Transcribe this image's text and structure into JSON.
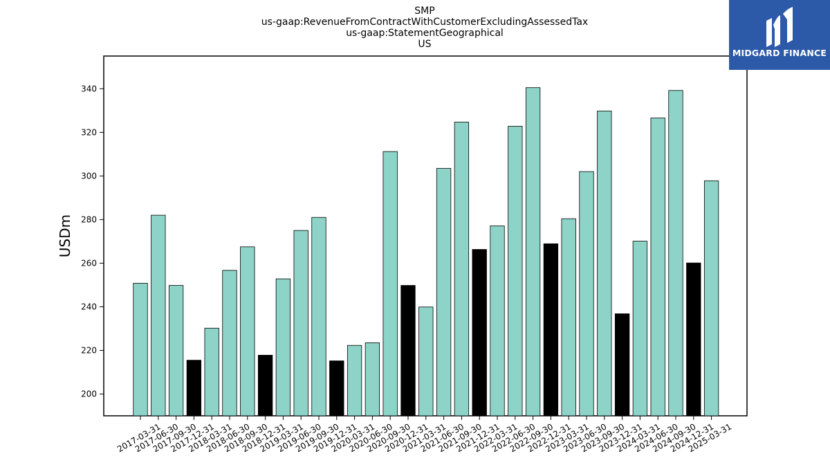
{
  "logo": {
    "text": "MIDGARD FINANCE"
  },
  "colors": {
    "regular": "#8dd3c7",
    "q4": "#000000",
    "logo_bg": "#2c5aa8"
  },
  "chart_data": {
    "type": "bar",
    "title_lines": [
      "SMP",
      "us-gaap:RevenueFromContractWithCustomerExcludingAssessedTax",
      "us-gaap:StatementGeographical",
      "US"
    ],
    "xlabel": "",
    "ylabel": "USDm",
    "ylim": [
      190,
      355
    ],
    "yticks": [
      200,
      220,
      240,
      260,
      280,
      300,
      320,
      340
    ],
    "grid": false,
    "categories": [
      "2017-03-31",
      "2017-06-30",
      "2017-09-30",
      "2017-12-31",
      "2018-03-31",
      "2018-06-30",
      "2018-09-30",
      "2018-12-31",
      "2019-03-31",
      "2019-06-30",
      "2019-09-30",
      "2019-12-31",
      "2020-03-31",
      "2020-06-30",
      "2020-09-30",
      "2020-12-31",
      "2021-03-31",
      "2021-06-30",
      "2021-09-30",
      "2021-12-31",
      "2022-03-31",
      "2022-06-30",
      "2022-09-30",
      "2022-12-31",
      "2023-03-31",
      "2023-06-30",
      "2023-09-30",
      "2023-12-31",
      "2024-03-31",
      "2024-06-30",
      "2024-09-30",
      "2024-12-31",
      "2025-03-31"
    ],
    "values": [
      250.8,
      282.0,
      249.8,
      215.5,
      230.2,
      256.7,
      267.5,
      217.8,
      252.8,
      275.0,
      281.0,
      215.2,
      222.3,
      223.5,
      311.2,
      249.8,
      239.9,
      303.5,
      324.7,
      266.3,
      277.1,
      322.8,
      340.5,
      268.9,
      280.4,
      302.0,
      329.8,
      236.8,
      270.1,
      326.6,
      339.2,
      260.1,
      297.8
    ],
    "highlight_indices": [
      3,
      7,
      11,
      15,
      19,
      23,
      27,
      31
    ]
  }
}
